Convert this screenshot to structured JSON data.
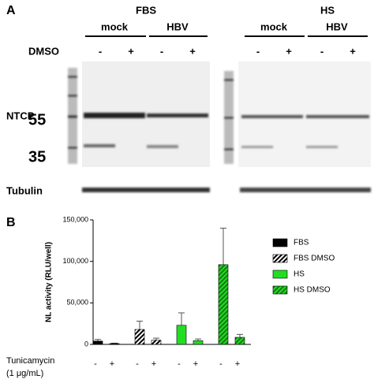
{
  "panel_a": {
    "label": "A",
    "groups": [
      {
        "name": "FBS",
        "subgroups": [
          "mock",
          "HBV"
        ]
      },
      {
        "name": "HS",
        "subgroups": [
          "mock",
          "HBV"
        ]
      }
    ],
    "row_label": "DMSO",
    "lane_signs": [
      "-",
      "+",
      "-",
      "+",
      "-",
      "+",
      "-",
      "+"
    ],
    "blot_label": "NTCP",
    "markers": [
      "55",
      "35"
    ],
    "loading_label": "Tubulin"
  },
  "chart_data": {
    "type": "bar",
    "panel_label": "B",
    "ylabel": "NL activity (RLU/well)",
    "x_label": [
      "Tunicamycin",
      "(1 μg/mL)"
    ],
    "categories": [
      "-",
      "+"
    ],
    "ylim": [
      0,
      150000
    ],
    "yticks": [
      0,
      {
        "value": 50000,
        "label": "50,000"
      },
      {
        "value": 100000,
        "label": "100,000"
      },
      {
        "value": 150000,
        "label": "150,000"
      }
    ],
    "series": [
      {
        "name": "FBS",
        "color": "#000000",
        "hatch": false,
        "values": [
          4000,
          1000
        ],
        "errors": [
          2000,
          500
        ]
      },
      {
        "name": "FBS DMSO",
        "color": "#000000",
        "hatch": true,
        "values": [
          18000,
          5000
        ],
        "errors": [
          10000,
          2500
        ]
      },
      {
        "name": "HS",
        "color": "#22dd22",
        "hatch": false,
        "values": [
          23000,
          4500
        ],
        "errors": [
          15000,
          2000
        ]
      },
      {
        "name": "HS DMSO",
        "color": "#22dd22",
        "hatch": true,
        "values": [
          96000,
          8500
        ],
        "errors": [
          44000,
          3500
        ]
      }
    ]
  }
}
